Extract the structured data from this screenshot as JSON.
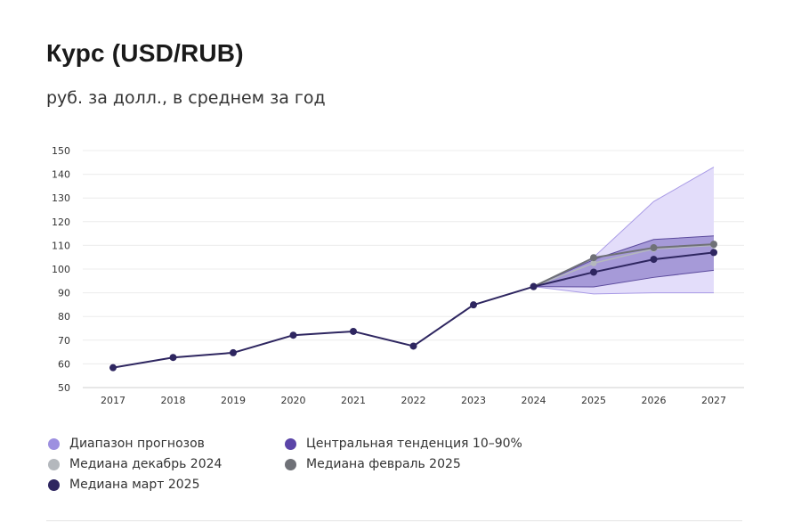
{
  "header": {
    "title": "Курс (USD/RUB)",
    "subtitle": "руб. за долл., в среднем за год"
  },
  "colors": {
    "actual": "#2e2660",
    "range_fill": "#e3ddfa",
    "range_line": "#a99be6",
    "central_fill": "#a69ad8",
    "central_line": "#5b4a9c",
    "median_feb": "#6f7177",
    "median_dec": "#b4b8bd"
  },
  "chart_data": {
    "type": "line",
    "title": "Курс (USD/RUB)",
    "ylabel": "руб. за долл., в среднем за год",
    "xlabel": "",
    "categories": [
      "2017",
      "2018",
      "2019",
      "2020",
      "2021",
      "2022",
      "2023",
      "2024",
      "2025",
      "2026",
      "2027"
    ],
    "y_ticks": [
      "50",
      "60",
      "70",
      "80",
      "90",
      "100",
      "110",
      "120",
      "130",
      "140",
      "150"
    ],
    "ylim": [
      50,
      150
    ],
    "grid": true,
    "bands": [
      {
        "name": "Диапазон прогнозов",
        "x": [
          "2024",
          "2025",
          "2026",
          "2027"
        ],
        "lower": [
          92.6,
          89.5,
          90.0,
          90.0
        ],
        "upper": [
          92.6,
          105.0,
          128.5,
          143.0
        ]
      },
      {
        "name": "Центральная тенденция 10–90%",
        "x": [
          "2024",
          "2025",
          "2026",
          "2027"
        ],
        "lower": [
          92.6,
          92.5,
          96.5,
          99.5
        ],
        "upper": [
          92.6,
          104.0,
          112.5,
          114.0
        ]
      }
    ],
    "series": [
      {
        "name": "Медиана март 2025",
        "x": [
          "2017",
          "2018",
          "2019",
          "2020",
          "2021",
          "2022",
          "2023",
          "2024",
          "2025",
          "2026",
          "2027"
        ],
        "values": [
          58.4,
          62.7,
          64.7,
          72.1,
          73.7,
          67.5,
          84.9,
          92.6,
          98.7,
          104.1,
          107.0
        ]
      },
      {
        "name": "Медиана февраль 2025",
        "x": [
          "2024",
          "2025",
          "2026",
          "2027"
        ],
        "values": [
          92.6,
          104.8,
          109.0,
          110.5
        ]
      },
      {
        "name": "Медиана декабрь 2024",
        "x": [
          "2024",
          "2025",
          "2026",
          "2027"
        ],
        "values": [
          92.6,
          102.5,
          108.5,
          110.0
        ]
      }
    ]
  },
  "legend": [
    {
      "label": "Диапазон прогнозов",
      "color": "#9d90e0"
    },
    {
      "label": "Центральная тенденция 10–90%",
      "color": "#5b45a8"
    },
    {
      "label": "Медиана декабрь 2024",
      "color": "#b4b8bd"
    },
    {
      "label": "Медиана февраль 2025",
      "color": "#6f7177"
    },
    {
      "label": "Медиана март 2025",
      "color": "#2e2660"
    }
  ]
}
